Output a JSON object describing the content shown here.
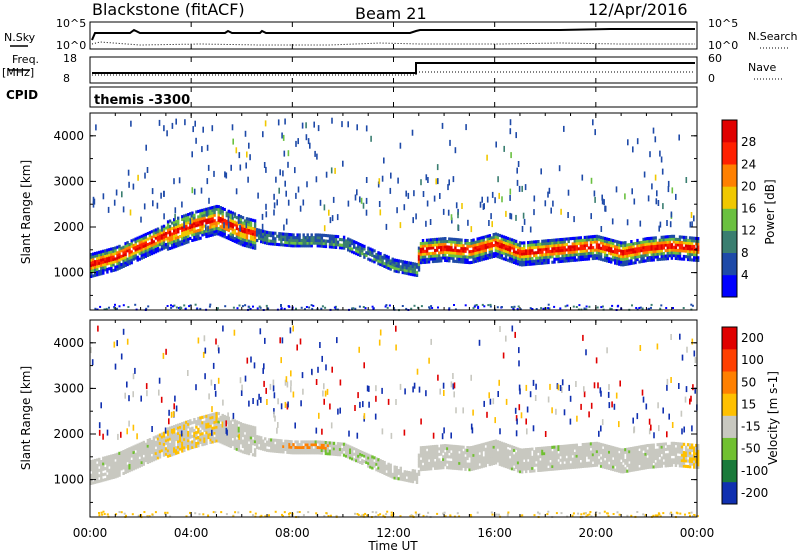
{
  "header": {
    "station": "Blackstone (fitACF)",
    "beam": "Beam 21",
    "date": "12/Apr/2016"
  },
  "nsky_panel": {
    "left_label": "N.Sky",
    "left_ticks": [
      "10^5",
      "10^0"
    ],
    "right_label": "N.Search",
    "right_ticks": [
      "10^5",
      "10^0"
    ]
  },
  "freq_panel": {
    "left_label_line1": "Freq.",
    "left_label_line2": "[MHz]",
    "left_ticks": [
      "18",
      "8"
    ],
    "right_label": "Nave",
    "right_ticks": [
      "60",
      "0"
    ]
  },
  "cpid_panel": {
    "label": "CPID",
    "text": "themis -3300"
  },
  "x_axis": {
    "label": "Time UT",
    "ticks": [
      "00:00",
      "04:00",
      "08:00",
      "12:00",
      "16:00",
      "20:00",
      "00:00"
    ]
  },
  "chart_data": [
    {
      "type": "heatmap",
      "title": "",
      "ylabel": "Slant Range [km]",
      "y_ticks": [
        "1000",
        "2000",
        "3000",
        "4000"
      ],
      "xlim": [
        0,
        24
      ],
      "ylim": [
        180,
        4500
      ],
      "colorbar": {
        "label": "Power [dB]",
        "ticks": [
          "4",
          "8",
          "12",
          "16",
          "20",
          "24",
          "28"
        ],
        "colors": [
          "#0000ff",
          "#1e4aa8",
          "#3a7e70",
          "#6ac040",
          "#f0c800",
          "#ff8000",
          "#ff2000",
          "#e00000"
        ]
      },
      "main_band_km": {
        "x_hours": [
          0,
          1,
          2,
          3,
          4,
          5,
          6,
          7,
          8,
          9,
          10,
          11,
          12,
          12.9,
          13,
          14,
          15,
          16,
          17,
          18,
          19,
          20,
          21,
          22,
          23,
          24
        ],
        "y_center": [
          1150,
          1300,
          1550,
          1800,
          2000,
          2150,
          1900,
          1750,
          1700,
          1700,
          1650,
          1400,
          1150,
          1050,
          1450,
          1500,
          1450,
          1600,
          1400,
          1450,
          1500,
          1550,
          1400,
          1500,
          1550,
          1500
        ]
      }
    },
    {
      "type": "heatmap",
      "title": "",
      "ylabel": "Slant Range [km]",
      "y_ticks": [
        "1000",
        "2000",
        "3000",
        "4000"
      ],
      "xlim": [
        0,
        24
      ],
      "ylim": [
        180,
        4500
      ],
      "colorbar": {
        "label": "Velocity [m s-1]",
        "ticks": [
          "200",
          "100",
          "50",
          "15",
          "-15",
          "-50",
          "-100",
          "-200"
        ],
        "colors": [
          "#1030b0",
          "#1a7a3a",
          "#70c030",
          "#c8c8c0",
          "#ffc000",
          "#ff8000",
          "#ff4000",
          "#e00000"
        ]
      },
      "main_band_km": {
        "x_hours": [
          0,
          1,
          2,
          3,
          4,
          5,
          6,
          7,
          8,
          9,
          10,
          11,
          12,
          12.9,
          13,
          14,
          15,
          16,
          17,
          18,
          19,
          20,
          21,
          22,
          23,
          24
        ],
        "y_center": [
          1150,
          1300,
          1550,
          1800,
          2000,
          2150,
          1900,
          1750,
          1700,
          1700,
          1650,
          1400,
          1150,
          1050,
          1450,
          1500,
          1450,
          1600,
          1400,
          1450,
          1500,
          1550,
          1400,
          1500,
          1550,
          1500
        ]
      }
    }
  ]
}
